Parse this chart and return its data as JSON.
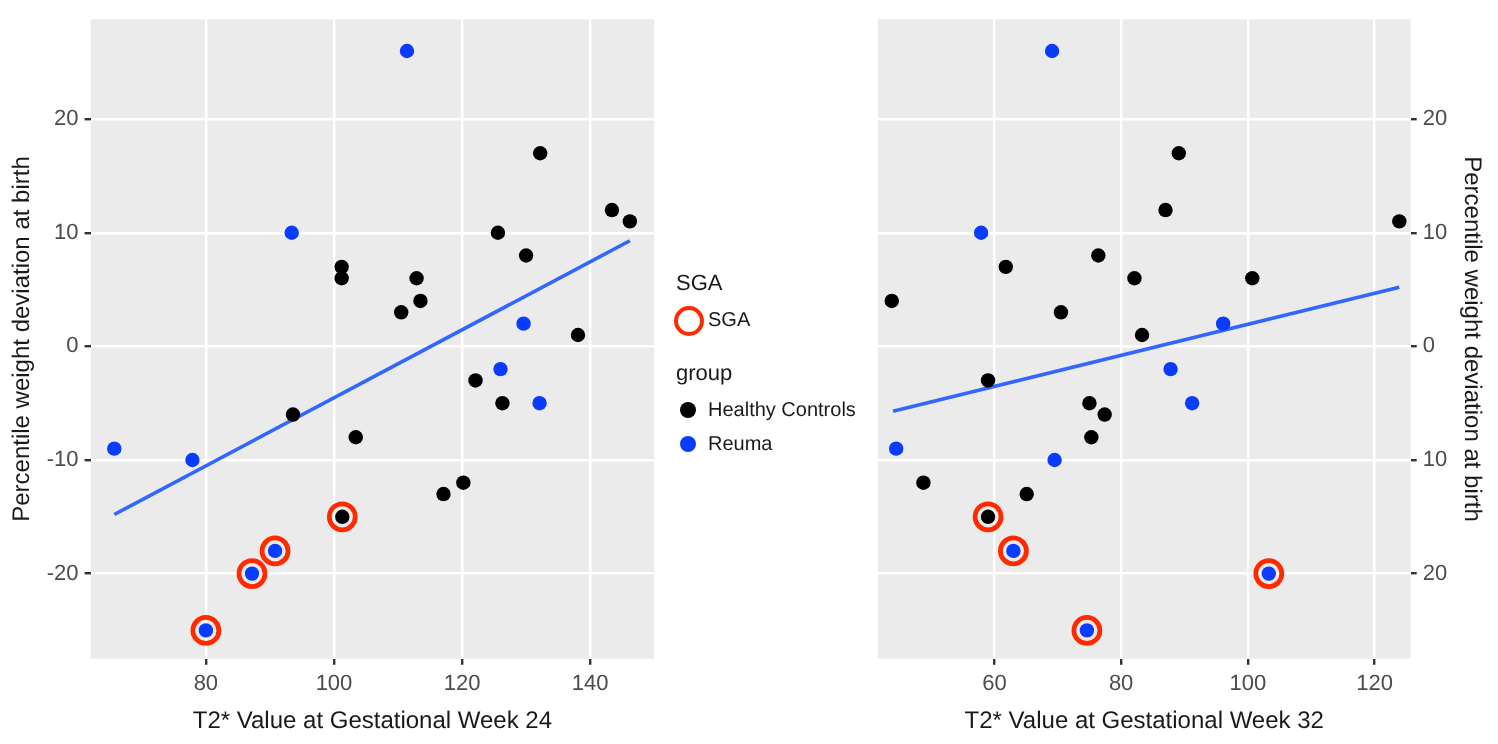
{
  "chart_data": [
    {
      "type": "scatter",
      "xlabel": "T2* Value at Gestational Week 24",
      "ylabel": "Percentile weight deviation at birth",
      "xlim": [
        62,
        150
      ],
      "xticks": [
        80,
        100,
        120,
        140
      ],
      "ylim": [
        -27.5,
        28.8
      ],
      "yticks": [
        -20,
        -10,
        0,
        10,
        20
      ],
      "grid": true,
      "marker": "circle",
      "legend": "right",
      "legend_title": "group",
      "annotations": [
        "SGA"
      ],
      "series": [
        {
          "name": "SGA",
          "color": "#ff2a00",
          "x": [
            101.3,
            90.8,
            87.2,
            80
          ],
          "values": [
            -15,
            -18,
            -20,
            -25
          ]
        },
        {
          "name": "Healthy Controls",
          "color": "#000000",
          "x": [
            93.6,
            101.2,
            101.2,
            103.4,
            110.5,
            112.9,
            113.5,
            117.1,
            120.2,
            122.1,
            125.6,
            126.3,
            130.0,
            132.2,
            138.1,
            143.4,
            146.2,
            101.3
          ],
          "values": [
            -6,
            7,
            6,
            -8,
            3,
            6,
            4,
            -13,
            -12,
            -3,
            10,
            -5,
            8,
            17,
            1,
            12,
            11,
            -15
          ]
        },
        {
          "name": "Reuma",
          "color": "#0a3cff",
          "x": [
            65.7,
            77.9,
            93.4,
            111.4,
            129.6,
            126.0,
            132.1,
            90.8,
            87.2,
            80
          ],
          "values": [
            -9,
            -10,
            10,
            26,
            2,
            -2,
            -5,
            -18,
            -20,
            -25
          ]
        },
        {
          "type": "line",
          "marker": "none",
          "color": "#3366ff",
          "x": [
            65.7,
            146.2
          ],
          "values": [
            -14.8,
            9.3
          ]
        }
      ]
    },
    {
      "type": "scatter",
      "xlabel": "T2* Value at Gestational Week 32",
      "y2label": "Percentile weight deviation at birth",
      "xlim": [
        41.6,
        125.7
      ],
      "xticks": [
        60,
        80,
        100,
        120
      ],
      "y2lim": [
        -27.5,
        28.8
      ],
      "y2ticks": [
        {
          "value": -20,
          "label": "20"
        },
        {
          "value": -10,
          "label": "10"
        },
        0,
        10,
        20
      ],
      "grid": true,
      "marker": "circle",
      "legend": false,
      "series": [
        {
          "color": "#ff2a00",
          "axis": "y2",
          "x": [
            59.0,
            63.0,
            74.6,
            103.3
          ],
          "values": [
            -15,
            -18,
            -25,
            -20
          ]
        },
        {
          "color": "#000000",
          "axis": "y2",
          "x": [
            43.8,
            61.8,
            70.5,
            76.4,
            82.1,
            83.3,
            87.0,
            89.1,
            100.7,
            123.9,
            59.0,
            75.0,
            77.4,
            75.3,
            48.8,
            65.1,
            59.0
          ],
          "values": [
            4,
            7,
            3,
            8,
            6,
            1,
            12,
            17,
            6,
            11,
            -3,
            -5,
            -6,
            -8,
            -12,
            -13,
            -15
          ]
        },
        {
          "color": "#0a3cff",
          "axis": "y2",
          "x": [
            69.1,
            57.9,
            96.1,
            87.8,
            91.2,
            44.5,
            69.5,
            63.0,
            74.6,
            103.3
          ],
          "values": [
            26,
            10,
            2,
            -2,
            -5,
            -9,
            -10,
            -18,
            -25,
            -20
          ]
        },
        {
          "type": "line",
          "marker": "none",
          "color": "#3366ff",
          "axis": "y2",
          "x": [
            44.0,
            123.9
          ],
          "values": [
            -5.7,
            5.2
          ]
        }
      ]
    }
  ]
}
